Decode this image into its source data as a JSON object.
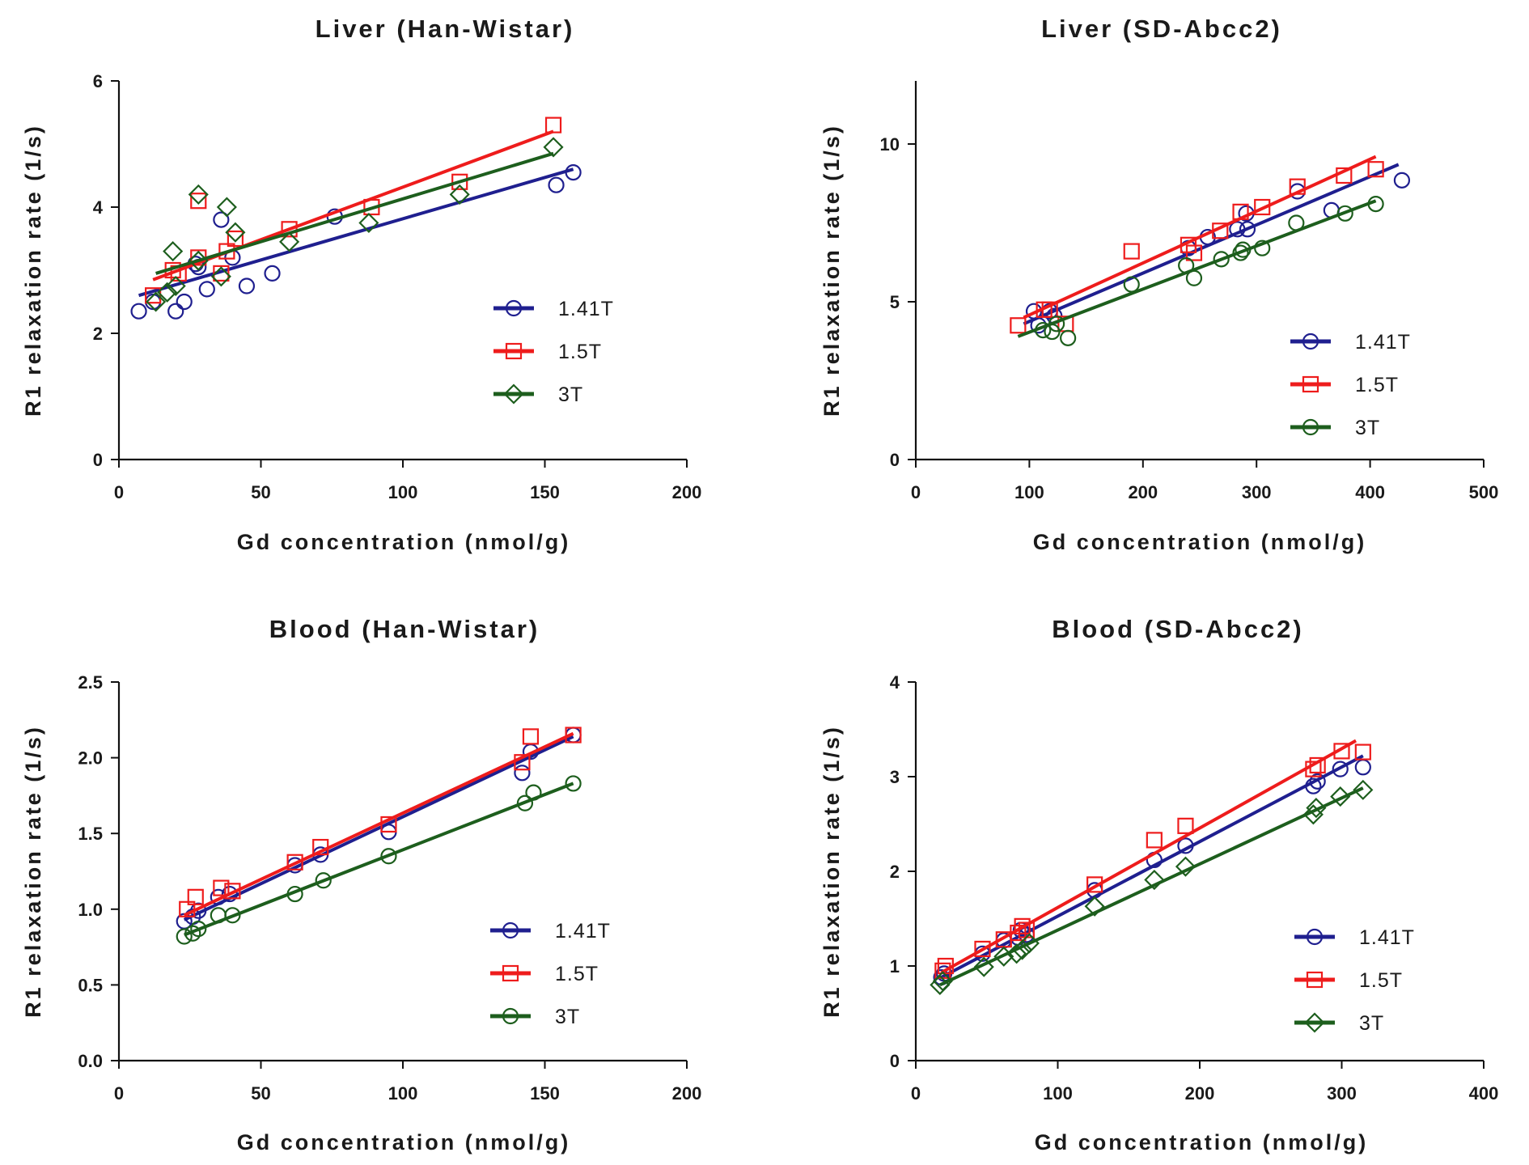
{
  "chart_data": [
    {
      "type": "scatter",
      "title": "Liver (Han-Wistar)",
      "xlabel": "Gd concentration (nmol/g)",
      "ylabel": "R1 relaxation rate (1/s)",
      "xlim": [
        0,
        200
      ],
      "ylim": [
        0,
        6
      ],
      "xticks": [
        "0",
        "50",
        "100",
        "150",
        "200"
      ],
      "yticks": [
        "0",
        "2",
        "4",
        "6"
      ],
      "legend_position": "center-right",
      "series": [
        {
          "name": "1.41T",
          "color": "#1f1f8f",
          "marker": "circle",
          "points": [
            [
              7,
              2.35
            ],
            [
              12,
              2.5
            ],
            [
              20,
              2.35
            ],
            [
              23,
              2.5
            ],
            [
              27,
              3.1
            ],
            [
              28,
              3.05
            ],
            [
              31,
              2.7
            ],
            [
              36,
              3.8
            ],
            [
              40,
              3.2
            ],
            [
              45,
              2.75
            ],
            [
              54,
              2.95
            ],
            [
              76,
              3.85
            ],
            [
              154,
              4.35
            ],
            [
              160,
              4.55
            ]
          ],
          "fit": [
            [
              7,
              2.6
            ],
            [
              160,
              4.6
            ]
          ]
        },
        {
          "name": "1.5T",
          "color": "#ee1c1c",
          "marker": "square",
          "points": [
            [
              12,
              2.6
            ],
            [
              19,
              3.0
            ],
            [
              21,
              2.95
            ],
            [
              28,
              3.2
            ],
            [
              28,
              4.1
            ],
            [
              36,
              2.95
            ],
            [
              38,
              3.3
            ],
            [
              41,
              3.5
            ],
            [
              60,
              3.65
            ],
            [
              89,
              4.0
            ],
            [
              120,
              4.4
            ],
            [
              153,
              5.3
            ]
          ],
          "fit": [
            [
              12,
              2.85
            ],
            [
              153,
              5.2
            ]
          ]
        },
        {
          "name": "3T",
          "color": "#1d5e1d",
          "marker": "diamond",
          "points": [
            [
              13,
              2.5
            ],
            [
              17,
              2.65
            ],
            [
              19,
              3.3
            ],
            [
              20,
              2.75
            ],
            [
              28,
              3.15
            ],
            [
              28,
              4.2
            ],
            [
              36,
              2.9
            ],
            [
              38,
              4.0
            ],
            [
              41,
              3.6
            ],
            [
              60,
              3.45
            ],
            [
              88,
              3.75
            ],
            [
              120,
              4.2
            ],
            [
              153,
              4.95
            ]
          ],
          "fit": [
            [
              13,
              2.95
            ],
            [
              153,
              4.85
            ]
          ]
        }
      ],
      "legend": [
        "1.41T",
        "1.5T",
        "3T"
      ]
    },
    {
      "type": "scatter",
      "title": "Liver (SD-Abcc2)",
      "xlabel": "Gd concentration (nmol/g)",
      "ylabel": "R1 relaxation rate (1/s)",
      "xlim": [
        0,
        500
      ],
      "ylim": [
        0,
        12
      ],
      "xticks": [
        "0",
        "100",
        "200",
        "300",
        "400",
        "500"
      ],
      "yticks": [
        "0",
        "5",
        "10"
      ],
      "legend_position": "bottom-right",
      "series": [
        {
          "name": "1.41T",
          "color": "#1f1f8f",
          "marker": "circle",
          "points": [
            [
              104,
              4.7
            ],
            [
              108,
              4.25
            ],
            [
              118,
              4.7
            ],
            [
              122,
              4.55
            ],
            [
              240,
              6.7
            ],
            [
              257,
              7.05
            ],
            [
              283,
              7.3
            ],
            [
              291,
              7.8
            ],
            [
              292,
              7.3
            ],
            [
              336,
              8.5
            ],
            [
              366,
              7.9
            ],
            [
              428,
              8.85
            ]
          ],
          "fit": [
            [
              95,
              4.3
            ],
            [
              425,
              9.35
            ]
          ]
        },
        {
          "name": "1.5T",
          "color": "#ee1c1c",
          "marker": "square",
          "points": [
            [
              90,
              4.25
            ],
            [
              113,
              4.75
            ],
            [
              118,
              4.75
            ],
            [
              132,
              4.3
            ],
            [
              190,
              6.6
            ],
            [
              240,
              6.8
            ],
            [
              245,
              6.55
            ],
            [
              268,
              7.25
            ],
            [
              286,
              7.85
            ],
            [
              305,
              8.0
            ],
            [
              336,
              8.65
            ],
            [
              377,
              9.0
            ],
            [
              405,
              9.2
            ]
          ],
          "fit": [
            [
              95,
              4.5
            ],
            [
              405,
              9.6
            ]
          ]
        },
        {
          "name": "3T",
          "color": "#1d5e1d",
          "marker": "circle",
          "points": [
            [
              112,
              4.1
            ],
            [
              120,
              4.05
            ],
            [
              124,
              4.3
            ],
            [
              134,
              3.85
            ],
            [
              190,
              5.55
            ],
            [
              238,
              6.15
            ],
            [
              245,
              5.75
            ],
            [
              269,
              6.35
            ],
            [
              286,
              6.55
            ],
            [
              288,
              6.65
            ],
            [
              305,
              6.7
            ],
            [
              335,
              7.5
            ],
            [
              378,
              7.8
            ],
            [
              405,
              8.1
            ]
          ],
          "fit": [
            [
              90,
              3.9
            ],
            [
              405,
              8.2
            ]
          ]
        }
      ],
      "legend": [
        "1.41T",
        "1.5T",
        "3T"
      ]
    },
    {
      "type": "scatter",
      "title": "Blood (Han-Wistar)",
      "xlabel": "Gd concentration (nmol/g)",
      "ylabel": "R1 relaxation rate (1/s)",
      "xlim": [
        0,
        200
      ],
      "ylim": [
        0.0,
        2.5
      ],
      "xticks": [
        "0",
        "50",
        "100",
        "150",
        "200"
      ],
      "yticks": [
        "0.0",
        "0.5",
        "1.0",
        "1.5",
        "2.0",
        "2.5"
      ],
      "legend_position": "bottom-right",
      "series": [
        {
          "name": "1.41T",
          "color": "#1f1f8f",
          "marker": "circle",
          "points": [
            [
              23,
              0.92
            ],
            [
              26,
              0.95
            ],
            [
              28,
              0.99
            ],
            [
              35,
              1.08
            ],
            [
              39,
              1.1
            ],
            [
              62,
              1.29
            ],
            [
              71,
              1.36
            ],
            [
              95,
              1.51
            ],
            [
              142,
              1.9
            ],
            [
              145,
              2.04
            ],
            [
              160,
              2.15
            ]
          ],
          "fit": [
            [
              23,
              0.93
            ],
            [
              160,
              2.14
            ]
          ]
        },
        {
          "name": "1.5T",
          "color": "#ee1c1c",
          "marker": "square",
          "points": [
            [
              24,
              1.0
            ],
            [
              27,
              1.08
            ],
            [
              36,
              1.14
            ],
            [
              40,
              1.12
            ],
            [
              62,
              1.31
            ],
            [
              71,
              1.41
            ],
            [
              95,
              1.56
            ],
            [
              142,
              1.97
            ],
            [
              145,
              2.14
            ],
            [
              160,
              2.15
            ]
          ],
          "fit": [
            [
              23,
              0.96
            ],
            [
              160,
              2.16
            ]
          ]
        },
        {
          "name": "3T",
          "color": "#1d5e1d",
          "marker": "circle",
          "points": [
            [
              23,
              0.82
            ],
            [
              26,
              0.84
            ],
            [
              28,
              0.87
            ],
            [
              35,
              0.96
            ],
            [
              40,
              0.96
            ],
            [
              62,
              1.1
            ],
            [
              72,
              1.19
            ],
            [
              95,
              1.35
            ],
            [
              143,
              1.7
            ],
            [
              146,
              1.77
            ],
            [
              160,
              1.83
            ]
          ],
          "fit": [
            [
              23,
              0.83
            ],
            [
              160,
              1.83
            ]
          ]
        }
      ],
      "legend": [
        "1.41T",
        "1.5T",
        "3T"
      ]
    },
    {
      "type": "scatter",
      "title": "Blood (SD-Abcc2)",
      "xlabel": "Gd concentration (nmol/g)",
      "ylabel": "R1 relaxation rate (1/s)",
      "xlim": [
        0,
        400
      ],
      "ylim": [
        0,
        4
      ],
      "xticks": [
        "0",
        "100",
        "200",
        "300",
        "400"
      ],
      "yticks": [
        "0",
        "1",
        "2",
        "3",
        "4"
      ],
      "legend_position": "bottom-right",
      "series": [
        {
          "name": "1.41T",
          "color": "#1f1f8f",
          "marker": "circle",
          "points": [
            [
              18,
              0.88
            ],
            [
              20,
              0.92
            ],
            [
              47,
              1.13
            ],
            [
              62,
              1.27
            ],
            [
              72,
              1.3
            ],
            [
              74,
              1.38
            ],
            [
              78,
              1.33
            ],
            [
              126,
              1.8
            ],
            [
              168,
              2.12
            ],
            [
              190,
              2.27
            ],
            [
              280,
              2.9
            ],
            [
              283,
              2.95
            ],
            [
              299,
              3.08
            ],
            [
              315,
              3.1
            ]
          ],
          "fit": [
            [
              18,
              0.88
            ],
            [
              315,
              3.22
            ]
          ]
        },
        {
          "name": "1.5T",
          "color": "#ee1c1c",
          "marker": "square",
          "points": [
            [
              19,
              0.95
            ],
            [
              21,
              1.0
            ],
            [
              47,
              1.18
            ],
            [
              62,
              1.28
            ],
            [
              72,
              1.35
            ],
            [
              75,
              1.42
            ],
            [
              78,
              1.38
            ],
            [
              126,
              1.86
            ],
            [
              168,
              2.33
            ],
            [
              190,
              2.48
            ],
            [
              280,
              3.08
            ],
            [
              283,
              3.12
            ],
            [
              300,
              3.27
            ],
            [
              315,
              3.26
            ]
          ],
          "fit": [
            [
              18,
              0.93
            ],
            [
              310,
              3.38
            ]
          ]
        },
        {
          "name": "3T",
          "color": "#1d5e1d",
          "marker": "diamond",
          "points": [
            [
              17,
              0.8
            ],
            [
              19,
              0.84
            ],
            [
              48,
              0.99
            ],
            [
              62,
              1.1
            ],
            [
              71,
              1.13
            ],
            [
              75,
              1.17
            ],
            [
              80,
              1.24
            ],
            [
              126,
              1.63
            ],
            [
              168,
              1.91
            ],
            [
              190,
              2.05
            ],
            [
              280,
              2.6
            ],
            [
              282,
              2.67
            ],
            [
              299,
              2.79
            ],
            [
              315,
              2.86
            ]
          ],
          "fit": [
            [
              17,
              0.8
            ],
            [
              315,
              2.88
            ]
          ]
        }
      ],
      "legend": [
        "1.41T",
        "1.5T",
        "3T"
      ]
    }
  ]
}
